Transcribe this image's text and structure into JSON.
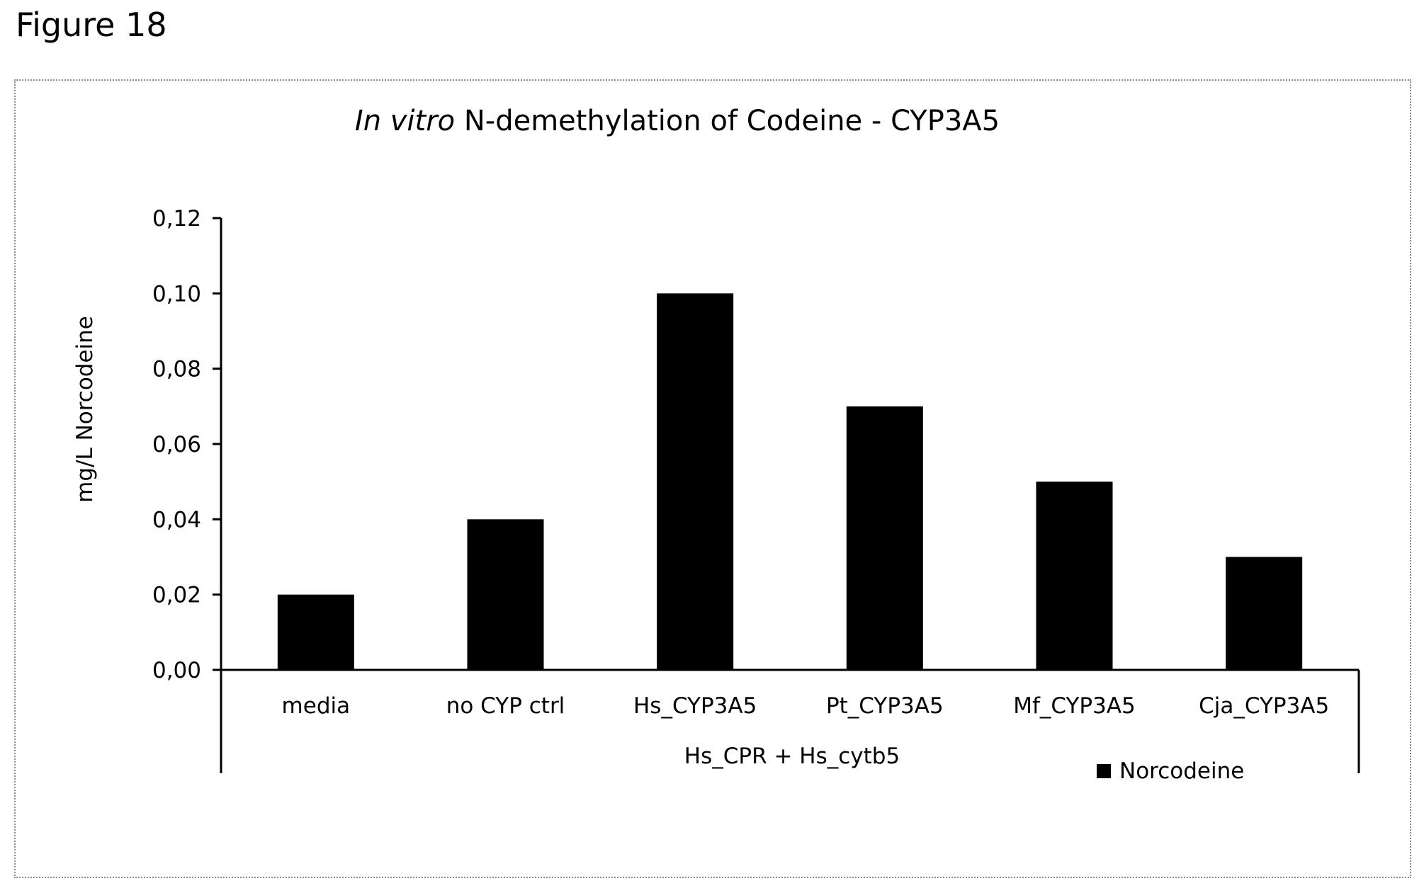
{
  "figure_label": "Figure 18",
  "chart_data": {
    "type": "bar",
    "title_italic": "In vitro",
    "title_rest": " N-demethylation of Codeine - CYP3A5",
    "ylabel": "mg/L Norcodeine",
    "xlabel": "Hs_CPR + Hs_cytb5",
    "categories": [
      "media",
      "no CYP ctrl",
      "Hs_CYP3A5",
      "Pt_CYP3A5",
      "Mf_CYP3A5",
      "Cja_CYP3A5"
    ],
    "series": [
      {
        "name": "Norcodeine",
        "values": [
          0.02,
          0.04,
          0.1,
          0.07,
          0.05,
          0.03
        ],
        "color": "#000000"
      }
    ],
    "ylim": [
      0,
      0.12
    ],
    "yticks": [
      "0,00",
      "0,02",
      "0,04",
      "0,06",
      "0,08",
      "0,10",
      "0,12"
    ],
    "grid": false,
    "legend_position": "bottom-right"
  }
}
